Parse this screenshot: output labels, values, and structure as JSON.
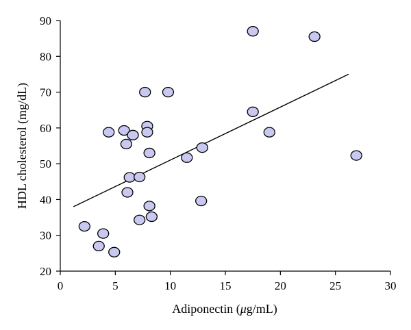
{
  "chart_data": {
    "type": "scatter",
    "title": "",
    "xlabel_prefix": "Adiponectin (",
    "xlabel_mu": "μ",
    "xlabel_suffix": "g/mL)",
    "ylabel": "HDL cholesterol (mg/dL)",
    "xlim": [
      0,
      30
    ],
    "ylim": [
      20,
      90
    ],
    "xticks": [
      0,
      5,
      10,
      15,
      20,
      25,
      30
    ],
    "yticks": [
      20,
      30,
      40,
      50,
      60,
      70,
      80,
      90
    ],
    "grid": false,
    "legend": "none",
    "marker_color": "#c8c8f0",
    "points": [
      {
        "x": 2.2,
        "y": 32.5
      },
      {
        "x": 3.5,
        "y": 27.0
      },
      {
        "x": 3.9,
        "y": 30.5
      },
      {
        "x": 4.4,
        "y": 58.8
      },
      {
        "x": 4.9,
        "y": 25.3
      },
      {
        "x": 5.8,
        "y": 59.3
      },
      {
        "x": 6.0,
        "y": 55.5
      },
      {
        "x": 6.1,
        "y": 42.0
      },
      {
        "x": 6.3,
        "y": 46.2
      },
      {
        "x": 6.6,
        "y": 58.0
      },
      {
        "x": 7.2,
        "y": 46.3
      },
      {
        "x": 7.2,
        "y": 34.3
      },
      {
        "x": 7.7,
        "y": 70.0
      },
      {
        "x": 7.9,
        "y": 60.5
      },
      {
        "x": 7.9,
        "y": 58.8
      },
      {
        "x": 8.1,
        "y": 53.0
      },
      {
        "x": 8.1,
        "y": 38.2
      },
      {
        "x": 8.3,
        "y": 35.2
      },
      {
        "x": 9.8,
        "y": 70.0
      },
      {
        "x": 11.5,
        "y": 51.7
      },
      {
        "x": 12.8,
        "y": 39.6
      },
      {
        "x": 12.9,
        "y": 54.5
      },
      {
        "x": 17.5,
        "y": 87.0
      },
      {
        "x": 17.5,
        "y": 64.5
      },
      {
        "x": 19.0,
        "y": 58.8
      },
      {
        "x": 23.1,
        "y": 85.5
      },
      {
        "x": 26.9,
        "y": 52.3
      }
    ],
    "trendline": {
      "x": [
        1.2,
        26.2
      ],
      "y": [
        38.0,
        75.0
      ]
    }
  }
}
